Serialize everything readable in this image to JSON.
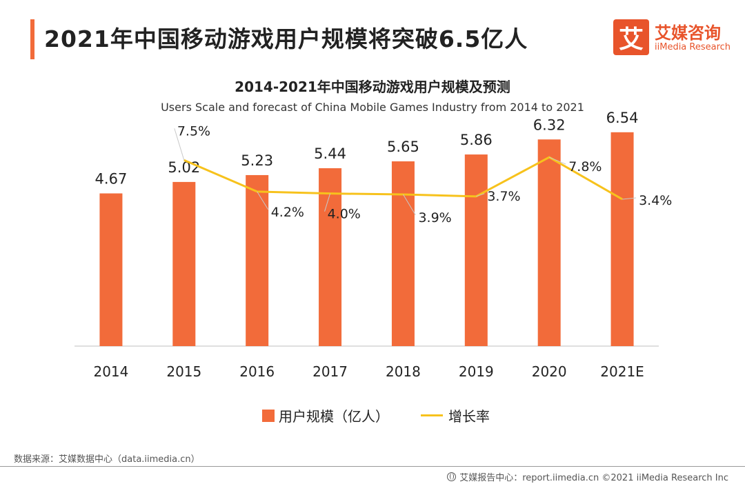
{
  "header": {
    "title": "2021年中国移动游戏用户规模将突破6.5亿人"
  },
  "logo": {
    "mark": "艾",
    "name_cn": "艾媒咨询",
    "name_en": "iiMedia Research"
  },
  "colors": {
    "accent": "#F26B3A",
    "bar": "#F26B3A",
    "line": "#F7C21C"
  },
  "chart_data": {
    "type": "bar",
    "title": "2014-2021年中国移动游戏用户规模及预测",
    "subtitle": "Users Scale and forecast of China Mobile Games Industry from 2014 to 2021",
    "categories": [
      "2014",
      "2015",
      "2016",
      "2017",
      "2018",
      "2019",
      "2020",
      "2021E"
    ],
    "series": [
      {
        "name": "用户规模（亿人）",
        "type": "bar",
        "values": [
          4.67,
          5.02,
          5.23,
          5.44,
          5.65,
          5.86,
          6.32,
          6.54
        ],
        "labels": [
          "4.67",
          "5.02",
          "5.23",
          "5.44",
          "5.65",
          "5.86",
          "6.32",
          "6.54"
        ]
      },
      {
        "name": "增长率",
        "type": "line",
        "values": [
          null,
          7.5,
          4.2,
          4.0,
          3.9,
          3.7,
          7.8,
          3.4
        ],
        "labels": [
          null,
          "7.5%",
          "4.2%",
          "4.0%",
          "3.9%",
          "3.7%",
          "7.8%",
          "3.4%"
        ]
      }
    ],
    "ylim": [
      0,
      7
    ],
    "y2lim": [
      -12,
      12
    ],
    "grid": false,
    "legend_position": "bottom"
  },
  "legend": {
    "bar_label": "用户规模（亿人）",
    "line_label": "增长率"
  },
  "source": "数据来源：艾媒数据中心（data.iimedia.cn）",
  "footer": "艾媒报告中心：report.iimedia.cn ©2021 iiMedia Research Inc"
}
